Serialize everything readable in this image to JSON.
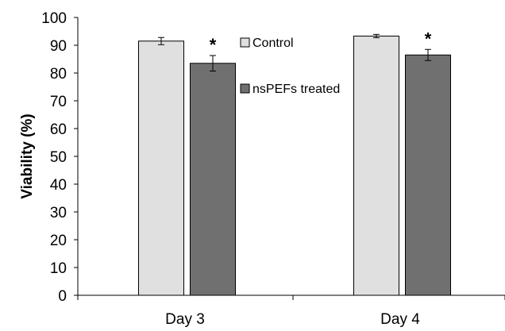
{
  "chart_data": {
    "type": "bar",
    "title": "",
    "xlabel": "",
    "ylabel": "Viability (%)",
    "ylim": [
      0,
      100
    ],
    "yticks": [
      "0",
      "10",
      "20",
      "30",
      "40",
      "50",
      "60",
      "70",
      "80",
      "90",
      "100"
    ],
    "categories": [
      "Day 3",
      "Day 4"
    ],
    "series": [
      {
        "name": "Control",
        "values": [
          91.5,
          93.3
        ],
        "errors": [
          1.3,
          0.6
        ],
        "color": "#e0e0e0"
      },
      {
        "name": "nsPEFs treated",
        "values": [
          83.5,
          86.5
        ],
        "errors": [
          2.8,
          2.0
        ],
        "color": "#707070"
      }
    ],
    "significance": [
      "*",
      "*"
    ],
    "legend_position": "top-center-inside",
    "grid": false
  }
}
